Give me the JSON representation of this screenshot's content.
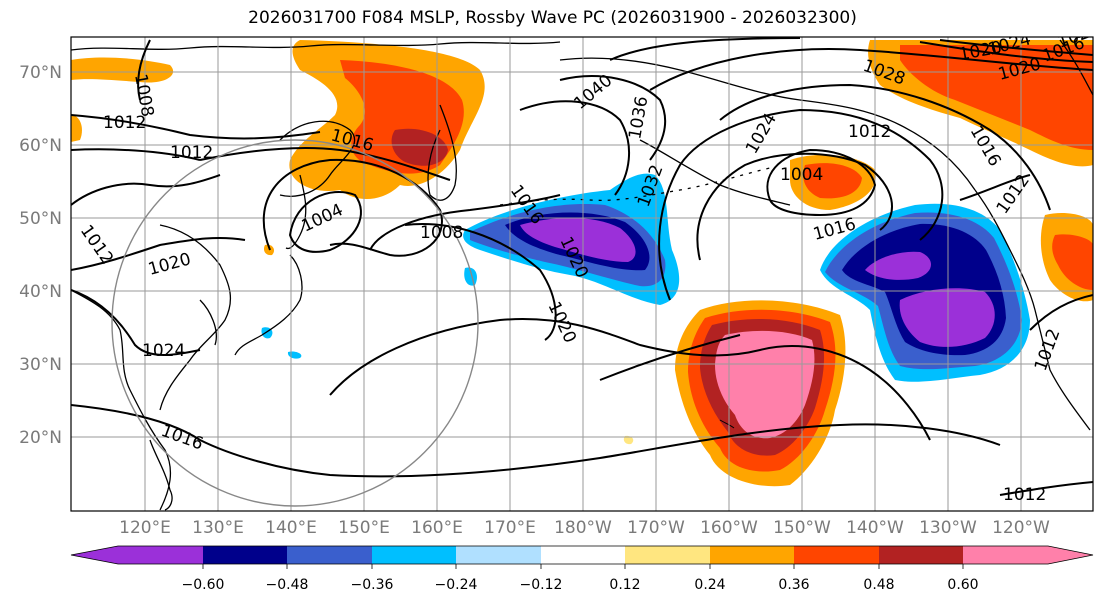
{
  "title": "2026031700 F084 MSLP, Rossby Wave PC (2026031900 - 2026032300)",
  "lat_labels": [
    "70°N",
    "60°N",
    "50°N",
    "40°N",
    "30°N",
    "20°N"
  ],
  "lon_labels": [
    "120°E",
    "130°E",
    "140°E",
    "150°E",
    "160°E",
    "170°E",
    "180°W",
    "170°W",
    "160°W",
    "150°W",
    "140°W",
    "130°W",
    "120°W"
  ],
  "isobar_labels": [
    "1008",
    "1012",
    "1012",
    "1016",
    "1004",
    "1008",
    "1020",
    "1024",
    "1016",
    "1020",
    "1012",
    "1016",
    "1004",
    "1012",
    "1016",
    "1020",
    "1024",
    "1028",
    "1032",
    "1036",
    "1040",
    "1020",
    "1016",
    "1012",
    "1012",
    "1012",
    "1016",
    "1020",
    "1024",
    "1028"
  ],
  "colorbar": {
    "ticks": [
      "−0.60",
      "−0.48",
      "−0.36",
      "−0.24",
      "−0.12",
      "0.12",
      "0.24",
      "0.36",
      "0.48",
      "0.60"
    ],
    "colors": [
      "#9b30d9",
      "#00008b",
      "#3a5fcd",
      "#00bfff",
      "#b0e0ff",
      "#ffffff",
      "#ffe680",
      "#ffa500",
      "#ff4500",
      "#b22222",
      "#ff80aa"
    ]
  }
}
